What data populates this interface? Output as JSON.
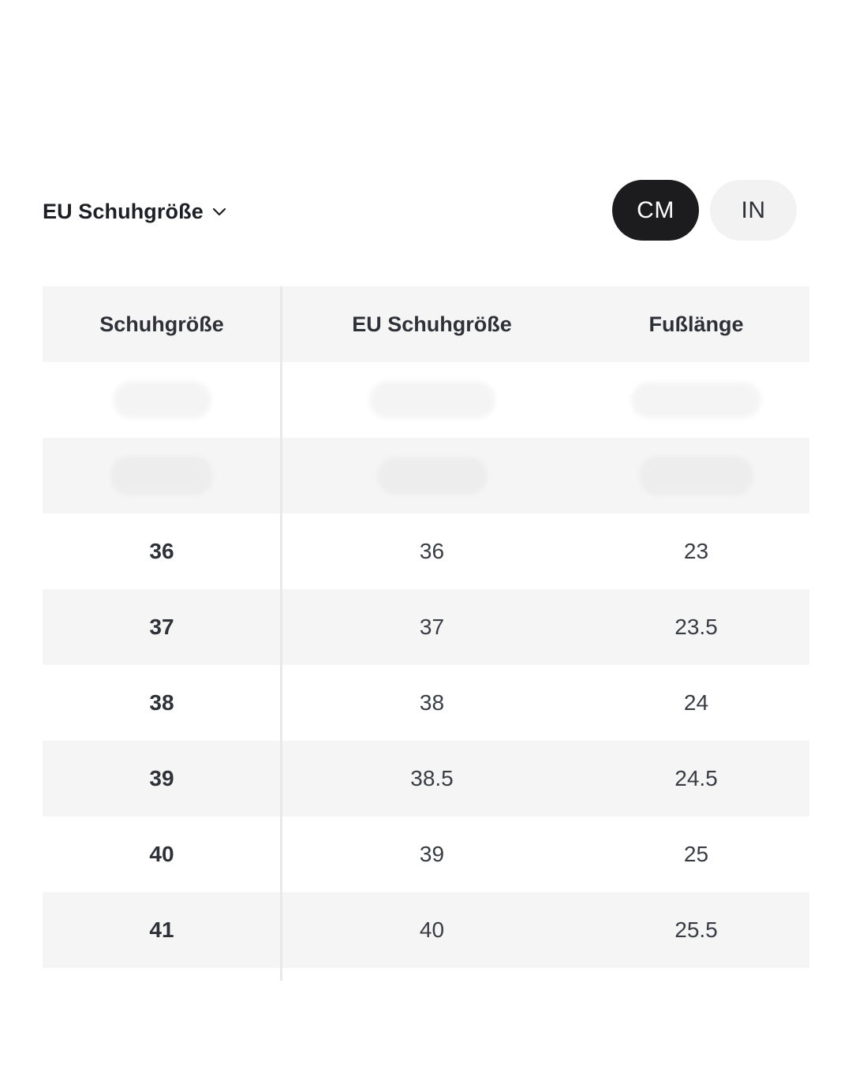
{
  "size_selector": {
    "label": "EU Schuhgröße",
    "icon": "chevron-down-icon"
  },
  "unit_toggle": {
    "options": [
      "CM",
      "IN"
    ],
    "selected": "CM"
  },
  "colors": {
    "active_toggle_bg": "#1c1c1e",
    "inactive_toggle_bg": "#f2f2f2",
    "row_shade": "#f5f5f5",
    "text": "#2f3138"
  },
  "table": {
    "headers": [
      "Schuhgröße",
      "EU Schuhgröße",
      "Fußlänge"
    ],
    "rows": [
      [
        "36",
        "36",
        "23"
      ],
      [
        "37",
        "37",
        "23.5"
      ],
      [
        "38",
        "38",
        "24"
      ],
      [
        "39",
        "38.5",
        "24.5"
      ],
      [
        "40",
        "39",
        "25"
      ],
      [
        "41",
        "40",
        "25.5"
      ]
    ]
  }
}
